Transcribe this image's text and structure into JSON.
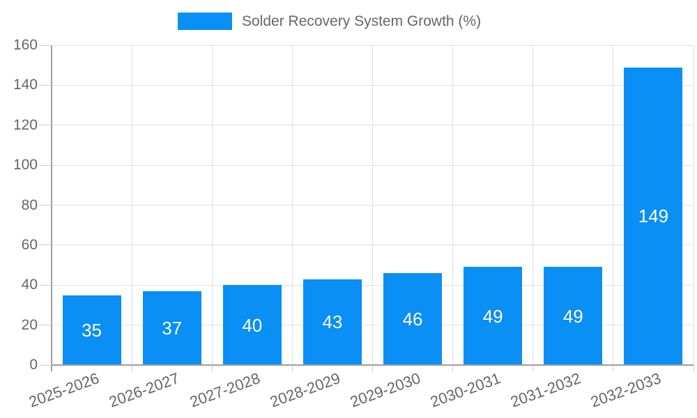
{
  "chart_data": {
    "type": "bar",
    "title": "Solder Recovery System Growth (%)",
    "legend": [
      {
        "label": "Solder Recovery System Growth (%)",
        "color": "#0a8ff5"
      }
    ],
    "legend_position": "top-center",
    "categories": [
      "2025-2026",
      "2026-2027",
      "2027-2028",
      "2028-2029",
      "2029-2030",
      "2030-2031",
      "2031-2032",
      "2032-2033"
    ],
    "values": [
      35,
      37,
      40,
      43,
      46,
      49,
      49,
      149
    ],
    "value_labels_visible": true,
    "xlabel": "",
    "ylabel": "",
    "ylim": [
      0,
      160
    ],
    "yticks": [
      0,
      20,
      40,
      60,
      80,
      100,
      120,
      140,
      160
    ],
    "grid": true,
    "x_label_rotation_deg": -20,
    "colors": {
      "bar": "#0a8ff5",
      "value_label": "#ffffff",
      "axis_text": "#666666",
      "grid_line": "#e0e0e0",
      "axis_line": "#9e9e9e",
      "tick_line": "#cccccc",
      "background": "#ffffff"
    }
  }
}
